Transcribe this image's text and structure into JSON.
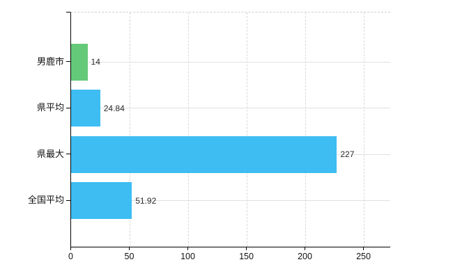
{
  "chart_data": {
    "type": "bar",
    "orientation": "horizontal",
    "title": "",
    "xlabel": "",
    "ylabel": "",
    "categories": [
      "男鹿市",
      "県平均",
      "県最大",
      "全国平均"
    ],
    "values": [
      14,
      24.84,
      227,
      51.92
    ],
    "value_labels": [
      "14",
      "24.84",
      "227",
      "51.92"
    ],
    "bar_colors": [
      "#65c97a",
      "#3dbdf2",
      "#3dbdf2",
      "#3dbdf2"
    ],
    "x_ticks": [
      0,
      50,
      100,
      150,
      200,
      250
    ],
    "x_tick_labels": [
      "0",
      "50",
      "100",
      "150",
      "200",
      "250"
    ],
    "xlim": [
      0,
      272.6
    ],
    "grid": true,
    "legend": "none"
  },
  "colors": {
    "background": "#ffffff",
    "bar_blue": "#3dbdf2",
    "bar_green": "#65c97a",
    "axis": "#000000",
    "text": "#111111",
    "value_text": "#2b2b2b",
    "vgrid": "#d8d8d8",
    "hgrid": "#dde3dd",
    "plot_top_border": "#cfcfcf"
  }
}
